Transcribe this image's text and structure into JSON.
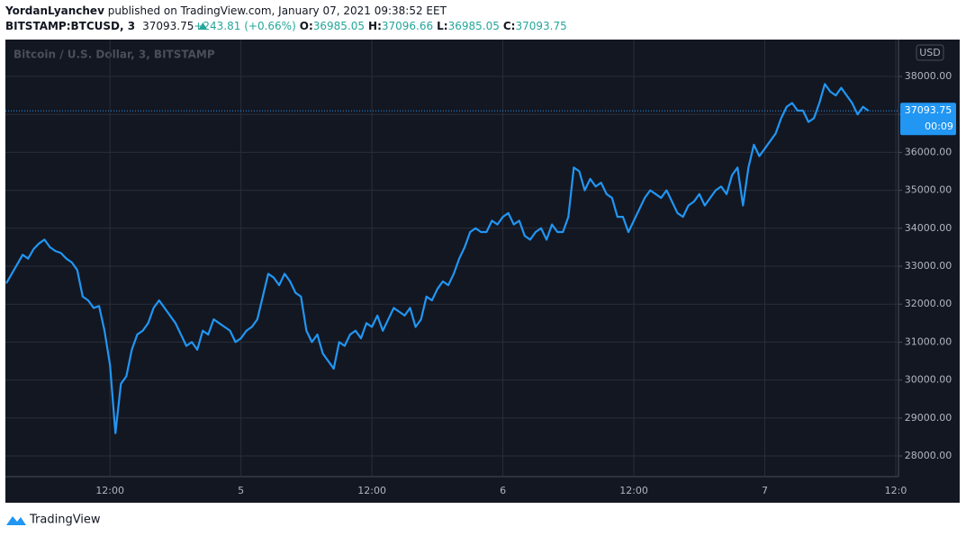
{
  "header": {
    "author": "YordanLyanchev",
    "published": "published on TradingView.com, January 07, 2021 09:38:52 EET"
  },
  "footer": {
    "brand": "TradingView"
  },
  "chart_data": {
    "type": "line",
    "symbol": "BITSTAMP:BTCUSD, 3",
    "last_price": 37093.75,
    "change": "+243.81 (+0.66%)",
    "ohlc": [
      {
        "label": "O:",
        "value": 36985.05
      },
      {
        "label": "H:",
        "value": 37096.66
      },
      {
        "label": "L:",
        "value": 36985.05
      },
      {
        "label": "C:",
        "value": 37093.75
      }
    ],
    "title": "Bitcoin / U.S. Dollar, 3, BITSTAMP",
    "currency": "USD",
    "countdown": "00:09",
    "grid": true,
    "ylim": [
      27455,
      38948
    ],
    "yticks": [
      {
        "value": 28000,
        "label": "28000.00"
      },
      {
        "value": 29000,
        "label": "29000.00"
      },
      {
        "value": 30000,
        "label": "30000.00"
      },
      {
        "value": 31000,
        "label": "31000.00"
      },
      {
        "value": 32000,
        "label": "32000.00"
      },
      {
        "value": 33000,
        "label": "33000.00"
      },
      {
        "value": 34000,
        "label": "34000.00"
      },
      {
        "value": 35000,
        "label": "35000.00"
      },
      {
        "value": 36000,
        "label": "36000.00"
      },
      {
        "value": 37000,
        "label": "37000.00"
      },
      {
        "value": 38000,
        "label": "38000.00"
      }
    ],
    "categories": [
      null,
      null,
      null,
      null,
      null,
      null,
      null,
      null,
      null,
      null,
      null,
      null,
      null,
      null,
      null,
      null,
      null,
      null,
      null,
      "12:00",
      null,
      null,
      null,
      null,
      null,
      null,
      null,
      null,
      null,
      null,
      null,
      null,
      null,
      null,
      null,
      null,
      null,
      null,
      null,
      null,
      null,
      null,
      null,
      "5",
      null,
      null,
      null,
      null,
      null,
      null,
      null,
      null,
      null,
      null,
      null,
      null,
      null,
      null,
      null,
      null,
      null,
      null,
      null,
      null,
      null,
      null,
      null,
      "12:00",
      null,
      null,
      null,
      null,
      null,
      null,
      null,
      null,
      null,
      null,
      null,
      null,
      null,
      null,
      null,
      null,
      null,
      null,
      null,
      null,
      null,
      null,
      null,
      "6",
      null,
      null,
      null,
      null,
      null,
      null,
      null,
      null,
      null,
      null,
      null,
      null,
      null,
      null,
      null,
      null,
      null,
      null,
      null,
      null,
      null,
      null,
      null,
      "12:00",
      null,
      null,
      null,
      null,
      null,
      null,
      null,
      null,
      null,
      null,
      null,
      null,
      null,
      null,
      null,
      null,
      null,
      null,
      null,
      null,
      null,
      null,
      null,
      "7",
      null,
      null,
      null,
      null,
      null,
      null,
      null,
      null,
      null,
      null,
      null,
      null,
      null,
      null,
      null,
      null,
      null,
      null,
      null,
      null,
      null,
      null,
      null,
      "12:0"
    ],
    "series": [
      {
        "name": "BTCUSD",
        "color": "#2196f3",
        "values": [
          32550,
          32800,
          33050,
          33300,
          33200,
          33450,
          33600,
          33700,
          33500,
          33400,
          33350,
          33200,
          33100,
          32900,
          32200,
          32100,
          31900,
          31950,
          31300,
          30400,
          28600,
          29900,
          30100,
          30800,
          31200,
          31300,
          31500,
          31900,
          32100,
          31900,
          31700,
          31500,
          31200,
          30900,
          31000,
          30800,
          31300,
          31200,
          31600,
          31500,
          31400,
          31300,
          31000,
          31100,
          31300,
          31400,
          31600,
          32200,
          32800,
          32700,
          32500,
          32800,
          32600,
          32300,
          32200,
          31300,
          31000,
          31200,
          30700,
          30500,
          30300,
          31000,
          30900,
          31200,
          31300,
          31100,
          31500,
          31400,
          31700,
          31300,
          31600,
          31900,
          31800,
          31700,
          31900,
          31400,
          31600,
          32200,
          32100,
          32400,
          32600,
          32500,
          32800,
          33200,
          33500,
          33900,
          34000,
          33900,
          33900,
          34200,
          34100,
          34300,
          34400,
          34100,
          34200,
          33800,
          33700,
          33900,
          34000,
          33700,
          34100,
          33900,
          33900,
          34300,
          35600,
          35500,
          35000,
          35300,
          35100,
          35200,
          34900,
          34800,
          34300,
          34300,
          33900,
          34200,
          34500,
          34800,
          35000,
          34900,
          34800,
          35000,
          34700,
          34400,
          34300,
          34600,
          34700,
          34900,
          34600,
          34800,
          35000,
          35100,
          34900,
          35400,
          35600,
          34600,
          35600,
          36200,
          35900,
          36100,
          36300,
          36500,
          36900,
          37200,
          37300,
          37100,
          37100,
          36800,
          36900,
          37300,
          37800,
          37600,
          37500,
          37700,
          37500,
          37300,
          37000,
          37200,
          37093.75,
          null,
          null,
          null,
          null,
          null
        ]
      }
    ]
  }
}
